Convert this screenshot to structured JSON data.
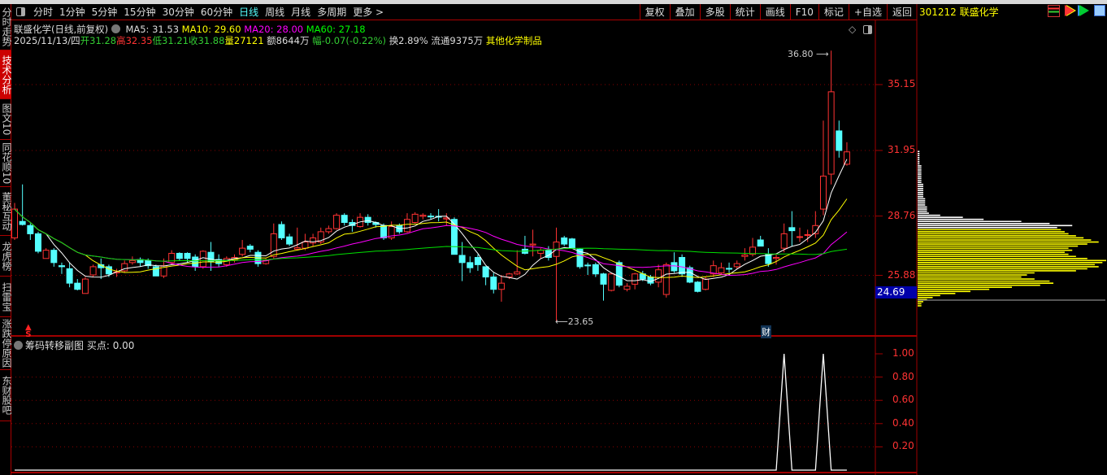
{
  "toolbar": {
    "tabs": [
      "分时",
      "1分钟",
      "5分钟",
      "15分钟",
      "30分钟",
      "60分钟",
      "日线",
      "周线",
      "月线",
      "多周期",
      "更多 >"
    ],
    "active": "日线",
    "right_buttons": [
      "复权",
      "叠加",
      "多股",
      "统计",
      "画线",
      "F10",
      "标记",
      "+自选",
      "返回"
    ]
  },
  "stock": {
    "code_name": "301212 联盛化学"
  },
  "sidebar": [
    "分时走势",
    "技术分析",
    "图文10",
    "同花顺10",
    "董秘互动",
    "龙虎榜",
    "扫雷宝",
    "涨跌停原因",
    "东财股吧"
  ],
  "sidebar_active": "技术分析",
  "info": {
    "title": "联盛化学(日线,前复权)",
    "ma5": "MA5: 31.53",
    "ma10": "MA10: 29.60",
    "ma20": "MA20: 28.00",
    "ma60": "MA60: 27.18",
    "date": "2025/11/13/四",
    "open_l": "开",
    "open": "31.28",
    "high_l": "高",
    "high": "32.35",
    "low_l": "低",
    "low": "31.21",
    "close_l": "收",
    "close": "31.88",
    "vol_l": "量",
    "vol": "27121",
    "amt": "额8644万",
    "chg_l": "幅",
    "chg": "-0.07(-0.22%)",
    "turn": "换2.89%",
    "float": "流通9375万",
    "industry": "其他化学制品"
  },
  "sub": {
    "title": "筹码转移副图",
    "buy": "买点: 0.00"
  },
  "colors": {
    "up": "#ff3333",
    "down": "#54ffff",
    "ma5": "#ffffff",
    "ma10": "#ffff00",
    "ma20": "#ff00ff",
    "ma60": "#00e000",
    "grid": "#a00000"
  },
  "chart_data": {
    "type": "candlestick",
    "price_ticks": [
      "35.15",
      "31.95",
      "28.76",
      "25.88"
    ],
    "current_price_label": "24.69",
    "max_label": "36.80",
    "min_label": "23.65",
    "marker_cai": "财",
    "marker_s": "S",
    "ohlc": [
      [
        27.7,
        29.4,
        27.6,
        29.1
      ],
      [
        28.5,
        30.3,
        28.3,
        28.35
      ],
      [
        28.3,
        28.4,
        27.6,
        27.9
      ],
      [
        27.9,
        28.0,
        26.95,
        27.05
      ],
      [
        26.7,
        27.2,
        26.7,
        27.1
      ],
      [
        27.1,
        27.2,
        26.3,
        26.5
      ],
      [
        26.35,
        26.5,
        25.95,
        26.3
      ],
      [
        26.2,
        26.5,
        25.3,
        25.5
      ],
      [
        25.5,
        25.7,
        25.15,
        25.2
      ],
      [
        25.0,
        25.8,
        25.0,
        25.7
      ],
      [
        25.9,
        26.4,
        25.8,
        26.3
      ],
      [
        26.4,
        26.7,
        25.7,
        26.25
      ],
      [
        26.3,
        26.4,
        25.8,
        25.95
      ],
      [
        26.0,
        26.2,
        25.8,
        26.05
      ],
      [
        26.1,
        26.6,
        26.0,
        26.45
      ],
      [
        26.5,
        26.8,
        26.4,
        26.6
      ],
      [
        26.65,
        26.75,
        26.3,
        26.5
      ],
      [
        26.6,
        26.7,
        26.2,
        26.35
      ],
      [
        26.3,
        26.4,
        25.85,
        25.85
      ],
      [
        25.85,
        26.7,
        25.75,
        26.35
      ],
      [
        26.5,
        27.1,
        26.4,
        26.95
      ],
      [
        26.95,
        27.0,
        26.6,
        26.7
      ],
      [
        26.95,
        27.0,
        26.5,
        26.7
      ],
      [
        26.77,
        26.9,
        26.1,
        26.3
      ],
      [
        26.3,
        27.1,
        26.2,
        27.05
      ],
      [
        27.0,
        27.5,
        26.1,
        26.55
      ],
      [
        26.65,
        26.9,
        26.3,
        26.45
      ],
      [
        26.4,
        26.8,
        26.3,
        26.7
      ],
      [
        26.6,
        26.9,
        26.5,
        26.75
      ],
      [
        26.9,
        27.6,
        26.8,
        27.2
      ],
      [
        27.3,
        27.4,
        27.0,
        27.15
      ],
      [
        27.0,
        27.1,
        26.3,
        26.45
      ],
      [
        26.45,
        26.7,
        26.4,
        26.6
      ],
      [
        26.8,
        28.4,
        26.7,
        27.9
      ],
      [
        28.35,
        28.5,
        27.6,
        27.7
      ],
      [
        27.75,
        27.9,
        27.3,
        27.4
      ],
      [
        27.15,
        28.2,
        27.1,
        27.22
      ],
      [
        27.2,
        27.9,
        27.1,
        27.5
      ],
      [
        27.45,
        27.9,
        27.3,
        27.7
      ],
      [
        27.5,
        28.2,
        27.4,
        28.0
      ],
      [
        28.0,
        28.3,
        27.9,
        28.15
      ],
      [
        28.15,
        28.9,
        28.1,
        28.8
      ],
      [
        28.8,
        28.9,
        28.3,
        28.45
      ],
      [
        28.45,
        28.6,
        28.0,
        28.3
      ],
      [
        28.25,
        28.9,
        28.2,
        28.7
      ],
      [
        28.7,
        28.85,
        28.3,
        28.45
      ],
      [
        28.45,
        28.5,
        28.2,
        28.35
      ],
      [
        28.3,
        28.4,
        27.6,
        27.7
      ],
      [
        27.7,
        28.5,
        27.6,
        28.25
      ],
      [
        28.3,
        28.4,
        27.9,
        28.0
      ],
      [
        28.0,
        28.9,
        27.95,
        28.6
      ],
      [
        28.45,
        28.95,
        28.4,
        28.85
      ],
      [
        28.75,
        28.9,
        28.6,
        28.8
      ],
      [
        28.76,
        28.9,
        28.6,
        28.74
      ],
      [
        28.75,
        29.1,
        28.5,
        28.74
      ],
      [
        28.62,
        28.9,
        28.3,
        28.67
      ],
      [
        28.6,
        28.7,
        26.9,
        26.9
      ],
      [
        26.85,
        27.5,
        25.6,
        26.5
      ],
      [
        26.5,
        26.8,
        26.0,
        26.25
      ],
      [
        26.75,
        26.9,
        26.1,
        26.4
      ],
      [
        26.3,
        26.3,
        25.4,
        25.8
      ],
      [
        25.8,
        26.0,
        25.0,
        25.2
      ],
      [
        25.2,
        25.9,
        24.6,
        25.5
      ],
      [
        25.8,
        26.0,
        25.7,
        25.95
      ],
      [
        25.95,
        27.1,
        25.9,
        26.05
      ],
      [
        27.15,
        27.8,
        26.9,
        26.95
      ],
      [
        27.35,
        28.1,
        26.8,
        27.4
      ],
      [
        26.95,
        27.2,
        26.7,
        27.1
      ],
      [
        27.1,
        27.3,
        26.6,
        26.75
      ],
      [
        26.8,
        28.2,
        23.65,
        27.5
      ],
      [
        27.7,
        27.8,
        27.3,
        27.4
      ],
      [
        27.65,
        27.7,
        27.2,
        27.2
      ],
      [
        27.15,
        27.2,
        26.2,
        26.3
      ],
      [
        26.38,
        26.5,
        25.9,
        26.35
      ],
      [
        26.4,
        26.5,
        25.8,
        25.95
      ],
      [
        25.95,
        26.0,
        24.65,
        25.45
      ],
      [
        25.15,
        26.0,
        25.1,
        25.95
      ],
      [
        26.5,
        26.6,
        25.3,
        25.4
      ],
      [
        25.2,
        25.5,
        25.1,
        25.35
      ],
      [
        25.45,
        26.0,
        25.2,
        25.95
      ],
      [
        25.95,
        26.1,
        25.6,
        25.7
      ],
      [
        25.8,
        25.9,
        25.4,
        25.5
      ],
      [
        25.55,
        26.4,
        25.3,
        26.15
      ],
      [
        24.95,
        26.5,
        24.8,
        26.4
      ],
      [
        26.5,
        27.0,
        26.0,
        26.1
      ],
      [
        26.75,
        26.9,
        25.8,
        25.95
      ],
      [
        26.25,
        26.35,
        25.5,
        25.55
      ],
      [
        25.55,
        25.6,
        25.05,
        25.1
      ],
      [
        25.2,
        25.8,
        25.15,
        25.7
      ],
      [
        25.95,
        26.6,
        25.8,
        26.35
      ],
      [
        26.0,
        26.5,
        25.9,
        26.25
      ],
      [
        26.22,
        26.5,
        26.0,
        26.18
      ],
      [
        26.3,
        26.6,
        26.2,
        26.45
      ],
      [
        26.8,
        27.2,
        26.6,
        26.87
      ],
      [
        26.9,
        27.7,
        26.8,
        27.25
      ],
      [
        27.6,
        27.8,
        27.3,
        27.3
      ],
      [
        26.9,
        27.2,
        26.3,
        26.45
      ],
      [
        26.7,
        26.9,
        26.4,
        26.75
      ],
      [
        27.2,
        28.4,
        27.0,
        27.9
      ],
      [
        28.2,
        29.0,
        27.3,
        28.05
      ],
      [
        27.74,
        28.2,
        27.5,
        27.76
      ],
      [
        27.84,
        28.1,
        27.5,
        27.86
      ],
      [
        27.9,
        29.0,
        27.7,
        28.3
      ],
      [
        29.1,
        33.4,
        28.8,
        30.7
      ],
      [
        30.8,
        36.8,
        30.3,
        34.8
      ],
      [
        32.9,
        33.4,
        31.6,
        31.95
      ],
      [
        31.28,
        32.35,
        31.21,
        31.88
      ]
    ],
    "ma_series": [
      "MA5",
      "MA10",
      "MA20",
      "MA60"
    ],
    "chips": {
      "start_price": 24.4,
      "step": 0.1,
      "split_price": 28.15,
      "weights": [
        2,
        2,
        3,
        5,
        8,
        12,
        20,
        28,
        38,
        50,
        65,
        72,
        70,
        62,
        55,
        58,
        62,
        84,
        90,
        96,
        94,
        98,
        100,
        90,
        84,
        80,
        78,
        82,
        80,
        85,
        90,
        96,
        92,
        88,
        84,
        80,
        78,
        76,
        74,
        82,
        70,
        55,
        35,
        24,
        12,
        6,
        5,
        5,
        5,
        4,
        4,
        4,
        4,
        3,
        3,
        3,
        3,
        3,
        3,
        3,
        2,
        2,
        2,
        2,
        2,
        2,
        2,
        2,
        2,
        1,
        1,
        1,
        1,
        1,
        1,
        1
      ]
    },
    "sub_ticks": [
      "1.00",
      "0.80",
      "0.60",
      "0.40",
      "0.20"
    ],
    "sub_ylim": [
      0,
      1
    ],
    "sub_values_nonzero": {
      "98": 1,
      "103": 1
    }
  }
}
